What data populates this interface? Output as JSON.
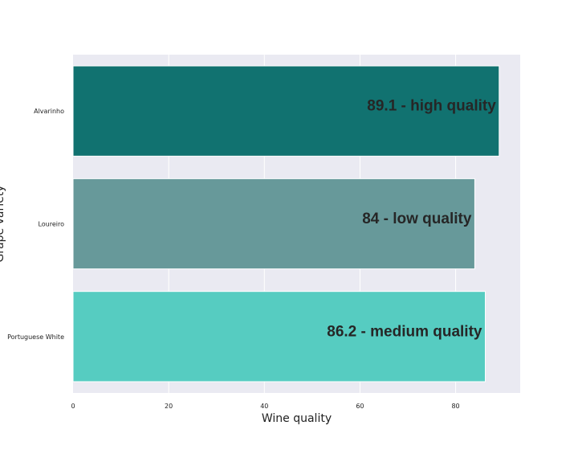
{
  "chart_data": {
    "type": "bar",
    "orientation": "horizontal",
    "categories": [
      "Alvarinho",
      "Loureiro",
      "Portuguese White"
    ],
    "values": [
      89.1,
      84,
      86.2
    ],
    "bar_labels": [
      "89.1 - high quality",
      "84 - low quality",
      "86.2 - medium quality"
    ],
    "colors": [
      "#117270",
      "#67999a",
      "#56ccc1"
    ],
    "xlabel": "Wine quality",
    "ylabel": "Grape variety",
    "xticks": [
      0,
      20,
      40,
      60,
      80
    ],
    "xlim": [
      0,
      93.5
    ],
    "grid": true,
    "background": "#eaeaf2"
  }
}
